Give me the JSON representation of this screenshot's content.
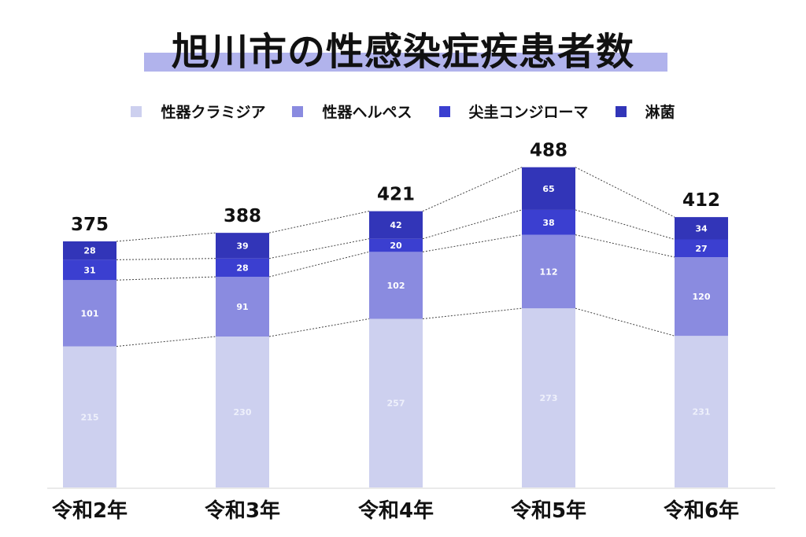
{
  "chart_data": {
    "type": "bar",
    "stacked": true,
    "title": "旭川市の性感染症疾患者数",
    "categories": [
      "令和2年",
      "令和3年",
      "令和4年",
      "令和5年",
      "令和6年"
    ],
    "series": [
      {
        "name": "性器クラミジア",
        "color": "#cdd0ef",
        "values": [
          215,
          230,
          257,
          273,
          231
        ]
      },
      {
        "name": "性器ヘルペス",
        "color": "#8a8be0",
        "values": [
          101,
          91,
          102,
          112,
          120
        ]
      },
      {
        "name": "尖圭コンジローマ",
        "color": "#3b3fd0",
        "values": [
          31,
          28,
          20,
          38,
          27
        ]
      },
      {
        "name": "淋菌",
        "color": "#3235b8",
        "values": [
          28,
          39,
          42,
          65,
          34
        ]
      }
    ],
    "totals": [
      375,
      388,
      421,
      488,
      412
    ],
    "legend_position": "top",
    "grid": false,
    "ylim": [
      0,
      500
    ]
  }
}
